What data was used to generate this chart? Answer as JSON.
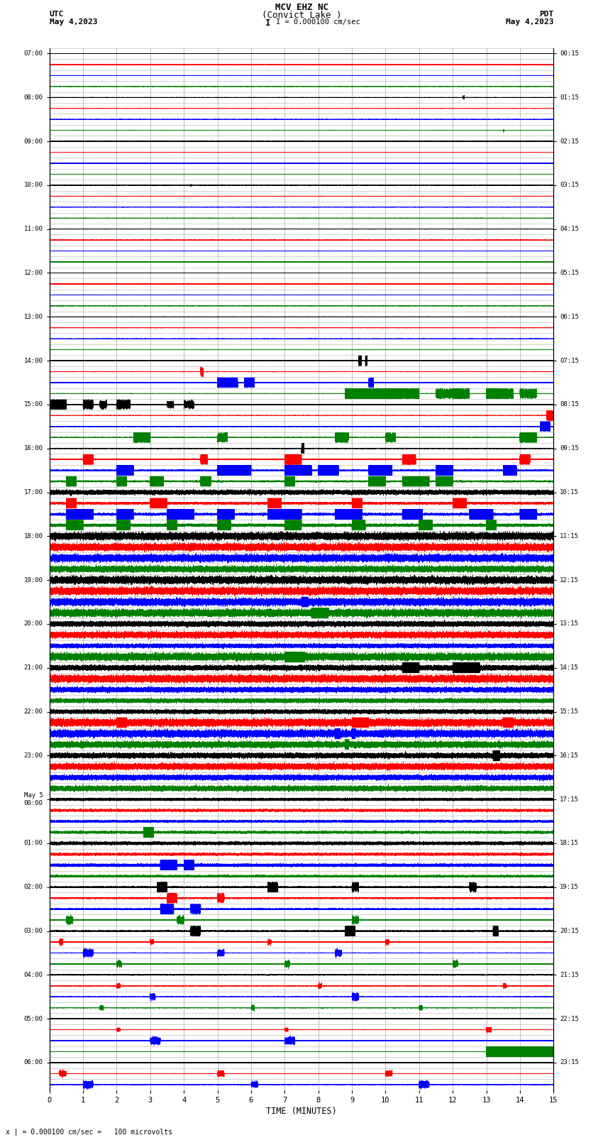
{
  "title_line1": "MCV EHZ NC",
  "title_line2": "(Convict Lake )",
  "scale_text": "I = 0.000100 cm/sec",
  "left_label1": "UTC",
  "left_label2": "May 4,2023",
  "right_label1": "PDT",
  "right_label2": "May 4,2023",
  "xlabel": "TIME (MINUTES)",
  "bottom_note": "x | = 0.000100 cm/sec =   100 microvolts",
  "utc_times": [
    "07:00",
    "",
    "",
    "",
    "08:00",
    "",
    "",
    "",
    "09:00",
    "",
    "",
    "",
    "10:00",
    "",
    "",
    "",
    "11:00",
    "",
    "",
    "",
    "12:00",
    "",
    "",
    "",
    "13:00",
    "",
    "",
    "",
    "14:00",
    "",
    "",
    "",
    "15:00",
    "",
    "",
    "",
    "16:00",
    "",
    "",
    "",
    "17:00",
    "",
    "",
    "",
    "18:00",
    "",
    "",
    "",
    "19:00",
    "",
    "",
    "",
    "20:00",
    "",
    "",
    "",
    "21:00",
    "",
    "",
    "",
    "22:00",
    "",
    "",
    "",
    "23:00",
    "",
    "",
    "",
    "May 5\n00:00",
    "",
    "",
    "",
    "01:00",
    "",
    "",
    "",
    "02:00",
    "",
    "",
    "",
    "03:00",
    "",
    "",
    "",
    "04:00",
    "",
    "",
    "",
    "05:00",
    "",
    "",
    "",
    "06:00",
    "",
    ""
  ],
  "pdt_times": [
    "00:15",
    "",
    "",
    "",
    "01:15",
    "",
    "",
    "",
    "02:15",
    "",
    "",
    "",
    "03:15",
    "",
    "",
    "",
    "04:15",
    "",
    "",
    "",
    "05:15",
    "",
    "",
    "",
    "06:15",
    "",
    "",
    "",
    "07:15",
    "",
    "",
    "",
    "08:15",
    "",
    "",
    "",
    "09:15",
    "",
    "",
    "",
    "10:15",
    "",
    "",
    "",
    "11:15",
    "",
    "",
    "",
    "12:15",
    "",
    "",
    "",
    "13:15",
    "",
    "",
    "",
    "14:15",
    "",
    "",
    "",
    "15:15",
    "",
    "",
    "",
    "16:15",
    "",
    "",
    "",
    "17:15",
    "",
    "",
    "",
    "18:15",
    "",
    "",
    "",
    "19:15",
    "",
    "",
    "",
    "20:15",
    "",
    "",
    "",
    "21:15",
    "",
    "",
    "",
    "22:15",
    "",
    "",
    "",
    "23:15",
    "",
    ""
  ],
  "n_rows": 95,
  "n_minutes": 15,
  "colors_cycle": [
    "black",
    "red",
    "blue",
    "green"
  ],
  "bg_color": "white",
  "grid_color": "#808080",
  "figsize": [
    8.5,
    16.13
  ],
  "dpi": 100
}
